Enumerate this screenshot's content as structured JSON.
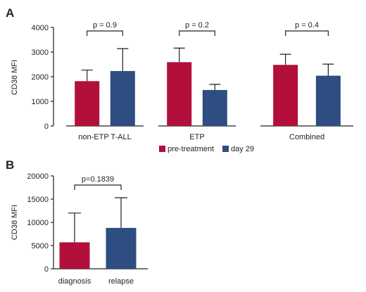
{
  "colors": {
    "pre": "#b2103a",
    "day29": "#2e4d80",
    "axis": "#222222",
    "text": "#222222"
  },
  "legend": {
    "items": [
      {
        "label": "pre-treatment",
        "color": "#b2103a"
      },
      {
        "label": "day 29",
        "color": "#2e4d80"
      }
    ],
    "placement": "bottom-center"
  },
  "chart_data": [
    {
      "panel": "A",
      "type": "bar",
      "ylabel": "CD38 MFI",
      "ylim": [
        0,
        4000
      ],
      "yticks": [
        0,
        1000,
        2000,
        3000,
        4000
      ],
      "series_names": [
        "pre-treatment",
        "day 29"
      ],
      "groups": [
        {
          "label": "non-ETP T-ALL",
          "bars": [
            {
              "series": "pre-treatment",
              "value": 1820,
              "error": 450
            },
            {
              "series": "day 29",
              "value": 2230,
              "error": 910
            }
          ],
          "p_value": "p = 0.9"
        },
        {
          "label": "ETP",
          "bars": [
            {
              "series": "pre-treatment",
              "value": 2590,
              "error": 570
            },
            {
              "series": "day 29",
              "value": 1460,
              "error": 230
            }
          ],
          "p_value": "p = 0.2"
        },
        {
          "label": "Combined",
          "bars": [
            {
              "series": "pre-treatment",
              "value": 2480,
              "error": 430
            },
            {
              "series": "day 29",
              "value": 2040,
              "error": 470
            }
          ],
          "p_value": "p = 0.4"
        }
      ]
    },
    {
      "panel": "B",
      "type": "bar",
      "ylabel": "CD38 MFI",
      "ylim": [
        0,
        20000
      ],
      "yticks": [
        0,
        5000,
        10000,
        15000,
        20000
      ],
      "categories": [
        "diagnosis",
        "relapse"
      ],
      "values": [
        5700,
        8800
      ],
      "errors": [
        6300,
        6500
      ],
      "bar_colors": [
        "#b2103a",
        "#2e4d80"
      ],
      "p_value": "p=0.1839"
    }
  ]
}
